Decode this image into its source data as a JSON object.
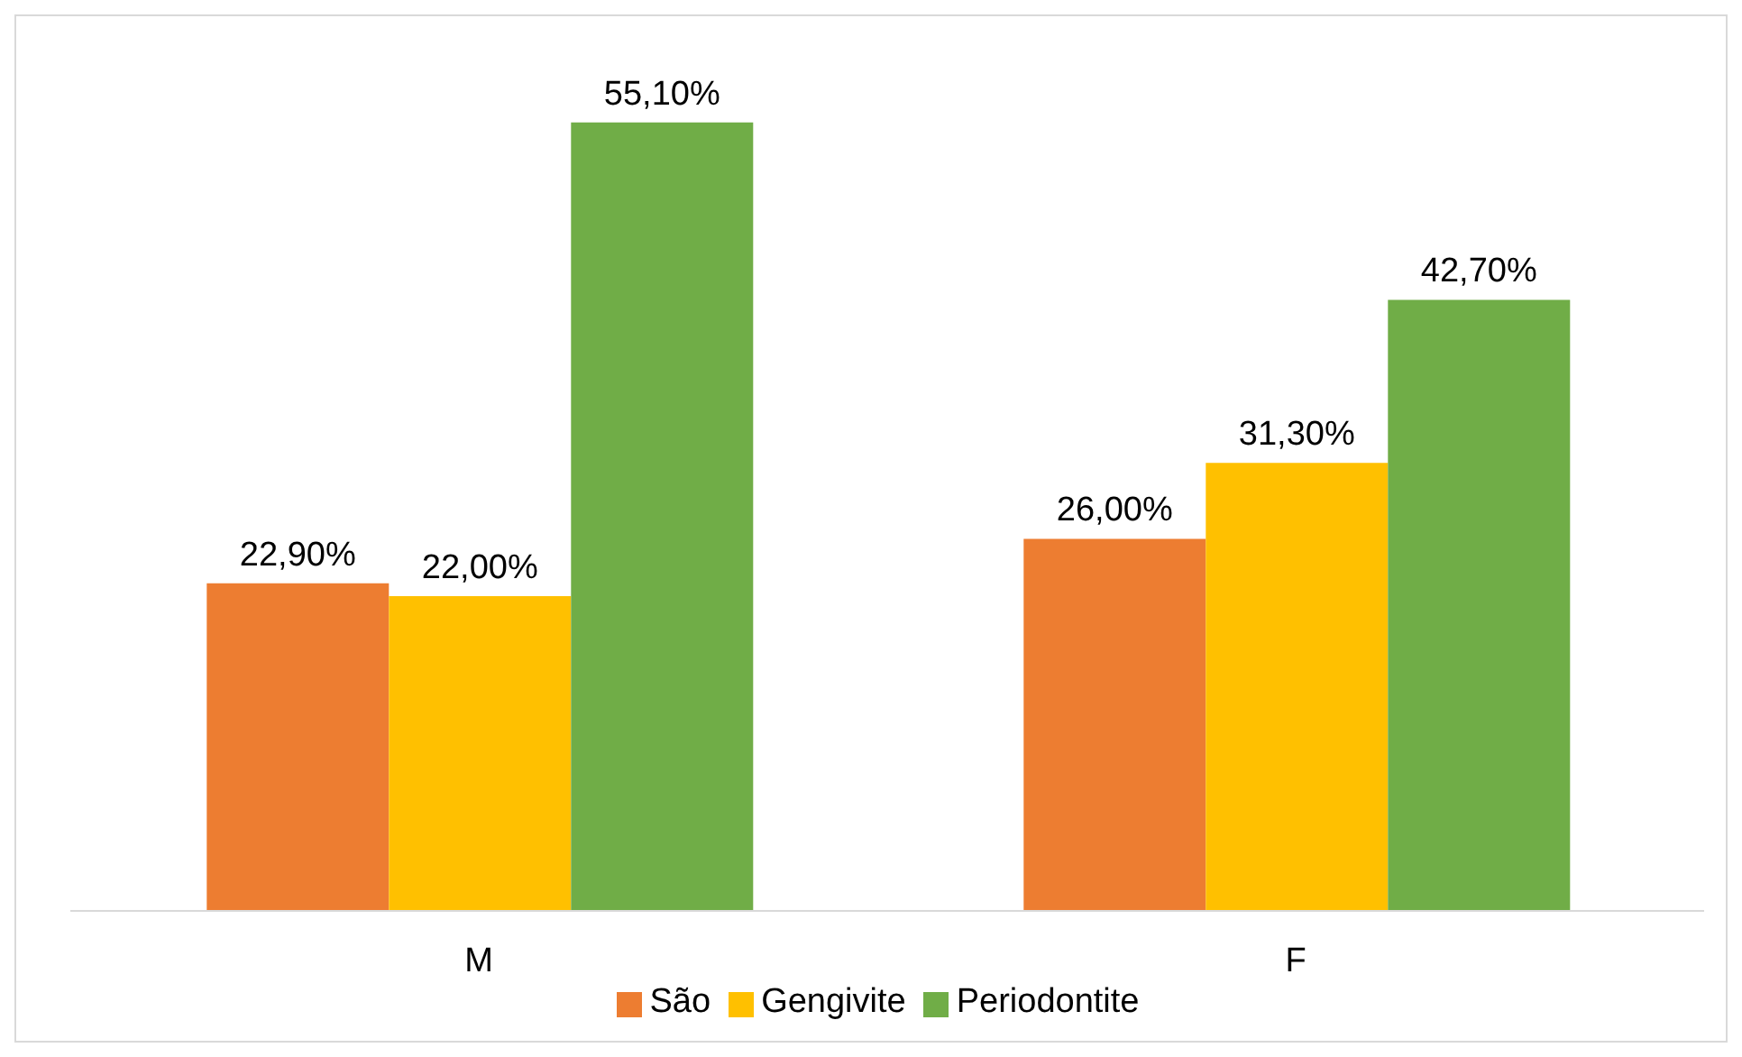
{
  "chart_data": {
    "type": "bar",
    "categories": [
      "M",
      "F"
    ],
    "series": [
      {
        "name": "São",
        "color": "#ed7d31",
        "values": [
          22.9,
          26.0
        ],
        "value_labels": [
          "22,90%",
          "26,00%"
        ]
      },
      {
        "name": "Gengivite",
        "color": "#ffc000",
        "values": [
          22.0,
          31.3
        ],
        "value_labels": [
          "22,00%",
          "31,30%"
        ]
      },
      {
        "name": "Periodontite",
        "color": "#70ad47",
        "values": [
          55.1,
          42.7
        ],
        "value_labels": [
          "55,10%",
          "42,70%"
        ]
      }
    ],
    "legend": "bottom",
    "grid": false
  }
}
